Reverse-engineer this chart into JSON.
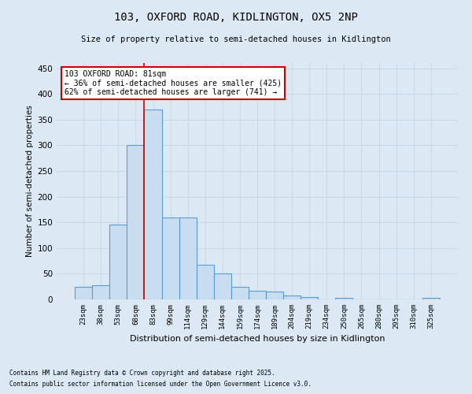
{
  "title1": "103, OXFORD ROAD, KIDLINGTON, OX5 2NP",
  "title2": "Size of property relative to semi-detached houses in Kidlington",
  "xlabel": "Distribution of semi-detached houses by size in Kidlington",
  "ylabel": "Number of semi-detached properties",
  "bin_labels": [
    "23sqm",
    "38sqm",
    "53sqm",
    "68sqm",
    "83sqm",
    "99sqm",
    "114sqm",
    "129sqm",
    "144sqm",
    "159sqm",
    "174sqm",
    "189sqm",
    "204sqm",
    "219sqm",
    "234sqm",
    "250sqm",
    "265sqm",
    "280sqm",
    "295sqm",
    "310sqm",
    "325sqm"
  ],
  "bar_values": [
    25,
    28,
    145,
    300,
    370,
    160,
    160,
    68,
    50,
    25,
    17,
    15,
    7,
    5,
    0,
    3,
    0,
    0,
    0,
    0,
    3
  ],
  "bar_color": "#c9ddf0",
  "bar_edge_color": "#5b9bd5",
  "grid_color": "#c8d8e8",
  "bg_color": "#dce9f5",
  "red_line_bin_index": 4,
  "annotation_box_text": "103 OXFORD ROAD: 81sqm\n← 36% of semi-detached houses are smaller (425)\n62% of semi-detached houses are larger (741) →",
  "annotation_box_color": "#ffffff",
  "annotation_box_edge_color": "#cc0000",
  "annotation_text_color": "#000000",
  "footer1": "Contains HM Land Registry data © Crown copyright and database right 2025.",
  "footer2": "Contains public sector information licensed under the Open Government Licence v3.0.",
  "ylim": [
    0,
    460
  ],
  "yticks": [
    0,
    50,
    100,
    150,
    200,
    250,
    300,
    350,
    400,
    450
  ]
}
